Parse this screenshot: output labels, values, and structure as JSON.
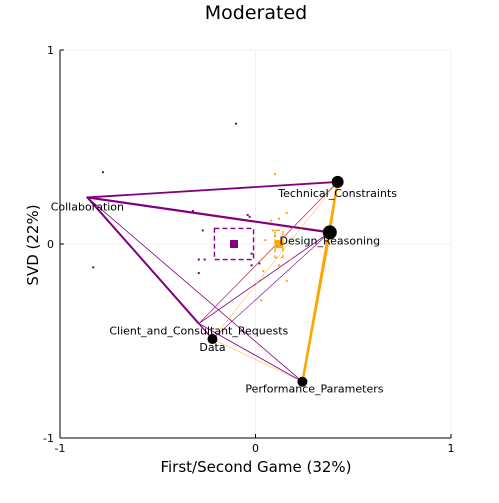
{
  "chart_data": {
    "type": "scatter",
    "title": "Moderated",
    "xlabel": "First/Second Game (32%)",
    "ylabel": "SVD (22%)",
    "xlim": [
      -1,
      1
    ],
    "ylim": [
      -1,
      1
    ],
    "xticks": [
      -1,
      0,
      1
    ],
    "yticks": [
      -1,
      0,
      1
    ],
    "grid": true,
    "legend": "none",
    "colors": {
      "purple": "#800080",
      "orange": "#ffa500",
      "black": "#000000",
      "axis": "#000000",
      "grid": "#eeeeee"
    },
    "codes": [
      {
        "label": "Technical_Constraints",
        "x": 0.42,
        "y": 0.32,
        "size": 6
      },
      {
        "label": "Design_Reasoning",
        "x": 0.38,
        "y": 0.06,
        "size": 7
      },
      {
        "label": "Collaboration",
        "x": -0.86,
        "y": 0.24,
        "size": 0
      },
      {
        "label": "Client_and_Consultant_Requests",
        "x": -0.29,
        "y": -0.41,
        "size": 0
      },
      {
        "label": "Data",
        "x": -0.22,
        "y": -0.49,
        "size": 5
      },
      {
        "label": "Performance_Parameters",
        "x": 0.24,
        "y": -0.71,
        "size": 5
      }
    ],
    "series": [
      {
        "color": "purple",
        "mean": {
          "x": -0.11,
          "y": 0.0
        },
        "ci": {
          "x": [
            -0.21,
            -0.01
          ],
          "y": [
            -0.08,
            0.08
          ]
        },
        "points": [
          [
            -0.1,
            0.62
          ],
          [
            -0.78,
            0.37
          ],
          [
            -0.83,
            -0.12
          ],
          [
            -0.32,
            0.17
          ],
          [
            -0.27,
            0.07
          ],
          [
            -0.26,
            -0.08
          ],
          [
            -0.29,
            -0.15
          ],
          [
            -0.29,
            -0.08
          ],
          [
            -0.04,
            0.15
          ],
          [
            -0.03,
            0.14
          ],
          [
            -0.02,
            -0.11
          ],
          [
            0.02,
            -0.1
          ],
          [
            -0.02,
            -0.05
          ]
        ],
        "edges": [
          {
            "a": "Collaboration",
            "b": "Technical_Constraints",
            "w": 1.8
          },
          {
            "a": "Collaboration",
            "b": "Design_Reasoning",
            "w": 2.2
          },
          {
            "a": "Collaboration",
            "b": "Client_and_Consultant_Requests",
            "w": 2.0
          },
          {
            "a": "Collaboration",
            "b": "Data",
            "w": 1.3
          },
          {
            "a": "Collaboration",
            "b": "Performance_Parameters",
            "w": 0.8
          },
          {
            "a": "Client_and_Consultant_Requests",
            "b": "Technical_Constraints",
            "w": 0.8
          },
          {
            "a": "Client_and_Consultant_Requests",
            "b": "Performance_Parameters",
            "w": 0.9
          },
          {
            "a": "Client_and_Consultant_Requests",
            "b": "Design_Reasoning",
            "w": 0.8
          },
          {
            "a": "Data",
            "b": "Design_Reasoning",
            "w": 0.6
          },
          {
            "a": "Technical_Constraints",
            "b": "Design_Reasoning",
            "w": 1.2
          },
          {
            "a": "Design_Reasoning",
            "b": "Performance_Parameters",
            "w": 0.8
          },
          {
            "a": "Technical_Constraints",
            "b": "Performance_Parameters",
            "w": 0.7
          }
        ]
      },
      {
        "color": "orange",
        "mean": {
          "x": 0.12,
          "y": 0.0
        },
        "ci": {
          "x": [
            0.1,
            0.14
          ],
          "y": [
            -0.07,
            0.07
          ]
        },
        "points": [
          [
            0.1,
            0.36
          ],
          [
            0.16,
            0.16
          ],
          [
            0.12,
            0.13
          ],
          [
            0.08,
            0.12
          ],
          [
            0.09,
            0.07
          ],
          [
            0.1,
            0.04
          ],
          [
            0.05,
            0.02
          ],
          [
            0.12,
            -0.11
          ],
          [
            0.04,
            -0.14
          ],
          [
            0.03,
            -0.29
          ],
          [
            0.18,
            -0.08
          ],
          [
            0.16,
            -0.19
          ]
        ],
        "edges": [
          {
            "a": "Technical_Constraints",
            "b": "Performance_Parameters",
            "w": 2.2
          },
          {
            "a": "Design_Reasoning",
            "b": "Performance_Parameters",
            "w": 2.4
          },
          {
            "a": "Technical_Constraints",
            "b": "Design_Reasoning",
            "w": 2.0
          },
          {
            "a": "Data",
            "b": "Technical_Constraints",
            "w": 0.5
          },
          {
            "a": "Client_and_Consultant_Requests",
            "b": "Technical_Constraints",
            "w": 0.5
          },
          {
            "a": "Data",
            "b": "Performance_Parameters",
            "w": 0.5
          }
        ]
      }
    ]
  }
}
